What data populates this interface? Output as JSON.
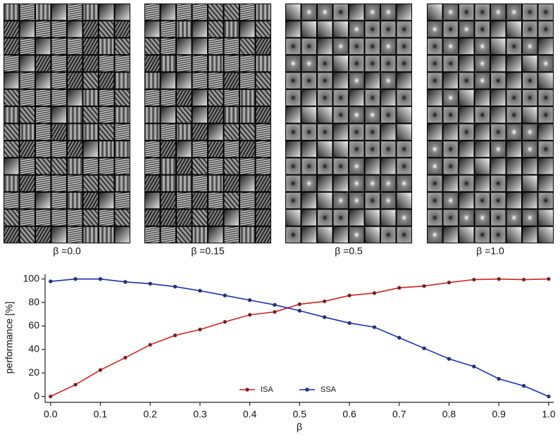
{
  "panels": [
    {
      "label": "β =0.0"
    },
    {
      "label": "β =0.15"
    },
    {
      "label": "β =0.5"
    },
    {
      "label": "β =1.0"
    }
  ],
  "chart_data": {
    "type": "line",
    "x": [
      0,
      0.05,
      0.1,
      0.15,
      0.2,
      0.25,
      0.3,
      0.35,
      0.4,
      0.45,
      0.5,
      0.55,
      0.6,
      0.65,
      0.7,
      0.75,
      0.8,
      0.85,
      0.9,
      0.95,
      1.0
    ],
    "series": [
      {
        "name": "ISA",
        "color": "#cc2222",
        "values": [
          0,
          10,
          22.5,
          33,
          44,
          52,
          57,
          63.5,
          69.5,
          72,
          78.5,
          81,
          86,
          88,
          92.5,
          94,
          97,
          99.5,
          100,
          99.5,
          100
        ]
      },
      {
        "name": "SSA",
        "color": "#1a2fb0",
        "values": [
          98,
          100,
          100,
          97.5,
          96,
          93.5,
          90,
          86,
          82,
          78,
          73,
          67.5,
          62.5,
          59,
          50,
          41,
          32,
          25.5,
          15,
          9,
          0
        ]
      }
    ],
    "xlabel": "β",
    "ylabel": "performance [%]",
    "xlim": [
      -0.011,
      1.01
    ],
    "ylim": [
      -5,
      104
    ],
    "xticks": [
      {
        "value": 0,
        "label": "0.0"
      },
      0.1,
      0.2,
      0.3,
      0.4,
      0.5,
      0.6,
      0.7,
      0.8,
      0.9,
      {
        "value": 1,
        "label": "1.0"
      }
    ],
    "yticks": [
      0,
      20,
      40,
      60,
      80,
      100
    ],
    "grid": false,
    "legend": "lower center"
  }
}
